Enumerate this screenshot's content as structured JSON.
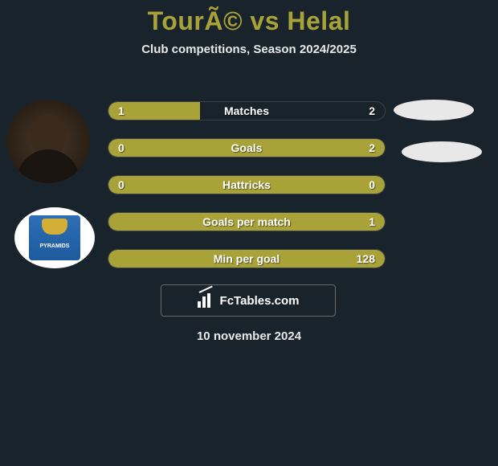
{
  "title": "TourÃ© vs Helal",
  "subtitle": "Club competitions, Season 2024/2025",
  "date": "10 november 2024",
  "footer_brand": "FcTables.com",
  "colors": {
    "background": "#19232b",
    "accent": "#a8a239",
    "text": "#ffffff",
    "subtitle_text": "#e8e8e8",
    "bar_border": "#3a4249",
    "oval_bg": "#e8e8e8"
  },
  "stats": [
    {
      "label": "Matches",
      "left_value": "1",
      "right_value": "2",
      "left_pct": 33,
      "right_pct": 67,
      "left_color": "#a8a239",
      "right_color": "transparent"
    },
    {
      "label": "Goals",
      "left_value": "0",
      "right_value": "2",
      "left_pct": 100,
      "right_pct": 0,
      "left_color": "#a8a239",
      "right_color": "transparent"
    },
    {
      "label": "Hattricks",
      "left_value": "0",
      "right_value": "0",
      "left_pct": 100,
      "right_pct": 0,
      "left_color": "#a8a239",
      "right_color": "transparent"
    },
    {
      "label": "Goals per match",
      "left_value": "",
      "right_value": "1",
      "left_pct": 100,
      "right_pct": 0,
      "left_color": "#a8a239",
      "right_color": "transparent"
    },
    {
      "label": "Min per goal",
      "left_value": "",
      "right_value": "128",
      "left_pct": 100,
      "right_pct": 0,
      "left_color": "#a8a239",
      "right_color": "transparent"
    }
  ],
  "team_logo_text": "PYRAMIDS"
}
